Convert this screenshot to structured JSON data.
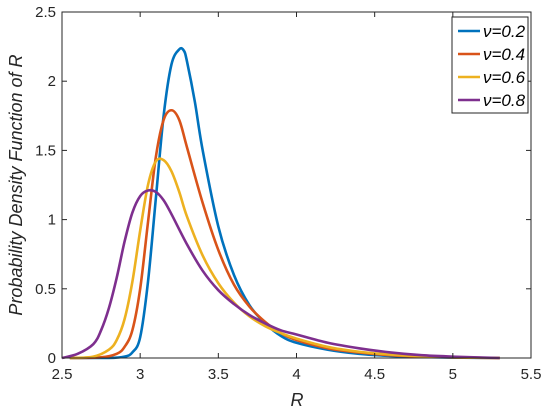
{
  "chart_data": {
    "type": "line",
    "title": "",
    "xlabel": "R",
    "ylabel": "Probability Density Function of R",
    "xlim": [
      2.5,
      5.5
    ],
    "ylim": [
      0,
      2.5
    ],
    "xticks": [
      2.5,
      3,
      3.5,
      4,
      4.5,
      5,
      5.5
    ],
    "xtick_labels": [
      "2.5",
      "3",
      "3.5",
      "4",
      "4.5",
      "5",
      "5.5"
    ],
    "yticks": [
      0,
      0.5,
      1,
      1.5,
      2,
      2.5
    ],
    "ytick_labels": [
      "0",
      "0.5",
      "1",
      "1.5",
      "2",
      "2.5"
    ],
    "grid": false,
    "legend_position": "top-right",
    "series": [
      {
        "name": "ν=0.2",
        "color": "#0072BD",
        "x": [
          2.55,
          2.8,
          2.9,
          2.95,
          3.0,
          3.05,
          3.1,
          3.15,
          3.2,
          3.25,
          3.28,
          3.3,
          3.35,
          3.4,
          3.5,
          3.6,
          3.7,
          3.8,
          3.9,
          4.0,
          4.2,
          4.4,
          4.6,
          4.8,
          5.0,
          5.3
        ],
        "y": [
          0,
          0.0,
          0.01,
          0.04,
          0.15,
          0.55,
          1.15,
          1.75,
          2.12,
          2.23,
          2.22,
          2.14,
          1.85,
          1.5,
          0.95,
          0.6,
          0.38,
          0.25,
          0.16,
          0.11,
          0.06,
          0.03,
          0.015,
          0.007,
          0.003,
          0.0
        ]
      },
      {
        "name": "ν=0.4",
        "color": "#D95319",
        "x": [
          2.55,
          2.75,
          2.85,
          2.9,
          2.95,
          3.0,
          3.05,
          3.1,
          3.15,
          3.2,
          3.25,
          3.3,
          3.4,
          3.5,
          3.6,
          3.7,
          3.8,
          3.9,
          4.0,
          4.2,
          4.4,
          4.6,
          4.8,
          5.0,
          5.3
        ],
        "y": [
          0,
          0.005,
          0.03,
          0.08,
          0.2,
          0.5,
          0.98,
          1.45,
          1.72,
          1.79,
          1.72,
          1.52,
          1.12,
          0.78,
          0.53,
          0.37,
          0.26,
          0.18,
          0.13,
          0.07,
          0.04,
          0.02,
          0.01,
          0.004,
          0.0
        ]
      },
      {
        "name": "ν=0.6",
        "color": "#EDB120",
        "x": [
          2.55,
          2.7,
          2.8,
          2.85,
          2.9,
          2.95,
          3.0,
          3.05,
          3.1,
          3.15,
          3.2,
          3.25,
          3.3,
          3.4,
          3.5,
          3.6,
          3.7,
          3.8,
          3.9,
          4.0,
          4.2,
          4.4,
          4.6,
          4.8,
          5.0,
          5.3
        ],
        "y": [
          0,
          0.01,
          0.06,
          0.13,
          0.28,
          0.55,
          0.92,
          1.25,
          1.42,
          1.43,
          1.35,
          1.2,
          1.02,
          0.74,
          0.54,
          0.4,
          0.3,
          0.23,
          0.18,
          0.14,
          0.08,
          0.045,
          0.025,
          0.012,
          0.005,
          0.0
        ]
      },
      {
        "name": "ν=0.8",
        "color": "#7E2F8E",
        "x": [
          2.5,
          2.6,
          2.7,
          2.75,
          2.8,
          2.85,
          2.9,
          2.95,
          3.0,
          3.05,
          3.1,
          3.15,
          3.2,
          3.3,
          3.4,
          3.5,
          3.6,
          3.7,
          3.8,
          3.9,
          4.0,
          4.2,
          4.4,
          4.6,
          4.8,
          5.0,
          5.3
        ],
        "y": [
          0,
          0.03,
          0.1,
          0.2,
          0.36,
          0.58,
          0.84,
          1.05,
          1.17,
          1.21,
          1.2,
          1.14,
          1.04,
          0.82,
          0.63,
          0.49,
          0.39,
          0.31,
          0.25,
          0.2,
          0.17,
          0.11,
          0.07,
          0.04,
          0.02,
          0.01,
          0.0
        ]
      }
    ]
  }
}
